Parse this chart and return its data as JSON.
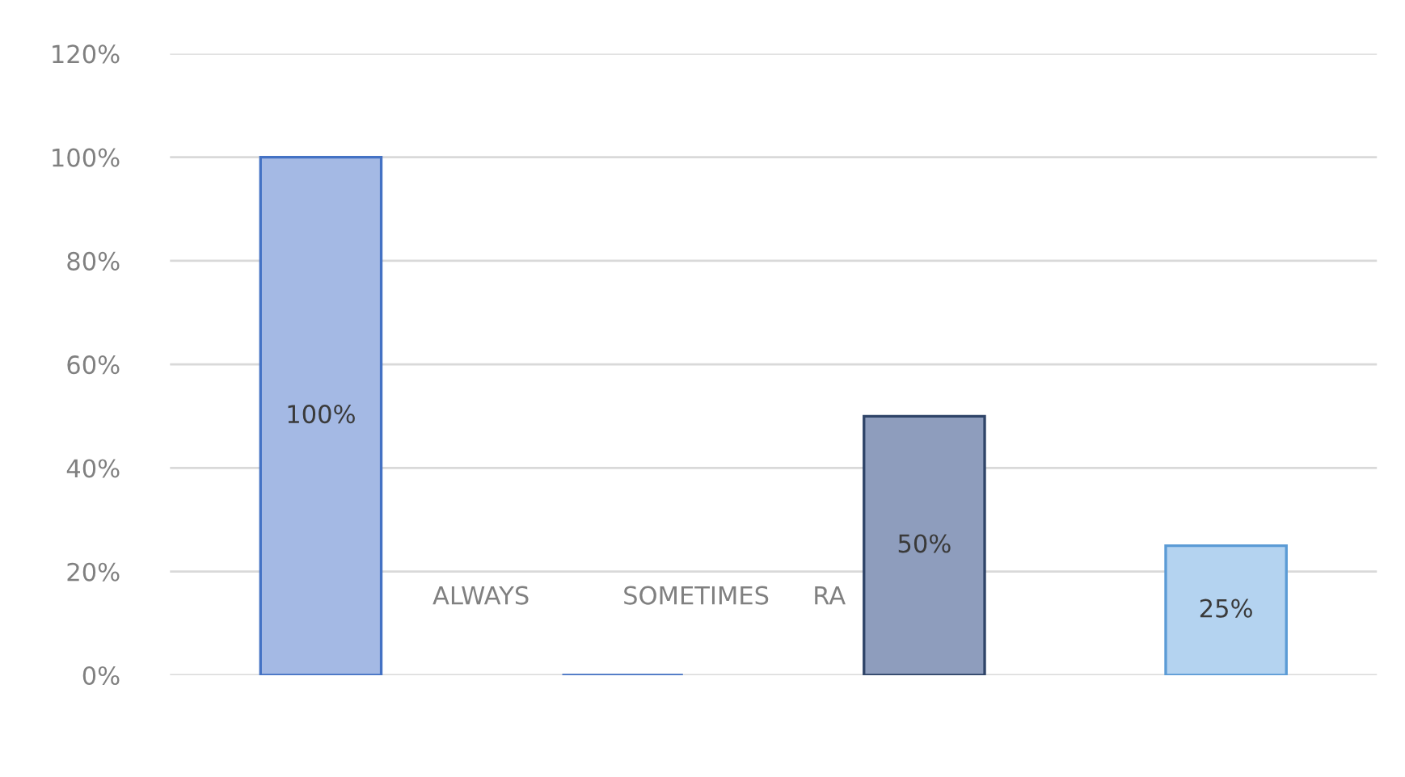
{
  "chart_data": {
    "type": "bar",
    "categories": [
      null,
      null,
      null,
      null
    ],
    "values": [
      100,
      0,
      50,
      25
    ],
    "colors": [
      "#a4b9e4",
      "#4472c4",
      "#8e9dbd",
      "#b4d3f0"
    ],
    "value_labels": [
      "100%",
      null,
      "50%",
      "25%"
    ],
    "ylim": [
      0,
      120
    ],
    "yticks": [
      {
        "value": 0,
        "label": "0%"
      },
      {
        "value": 20,
        "label": "20%"
      },
      {
        "value": 40,
        "label": "40%"
      },
      {
        "value": 60,
        "label": "60%"
      },
      {
        "value": 80,
        "label": "80%"
      },
      {
        "value": 100,
        "label": "100%"
      },
      {
        "value": 120,
        "label": "120%"
      }
    ],
    "grid": "y",
    "annotations": [
      "ALWAYS",
      "SOMETIMES",
      "RA"
    ]
  }
}
